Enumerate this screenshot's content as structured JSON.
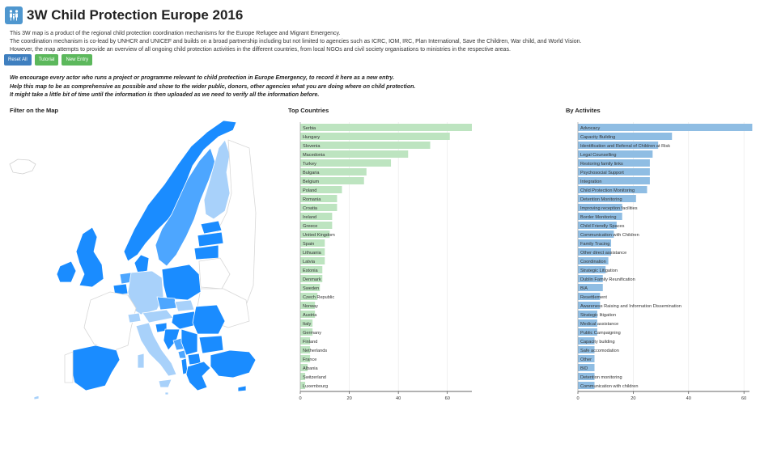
{
  "header": {
    "title": "3W Child Protection Europe 2016",
    "logo_icon": "family-icon"
  },
  "intro": {
    "line1": "This 3W map is a product of the regional child protection coordination mechanisms for the Europe Refugee and Migrant Emergency.",
    "line2": "The coordination mechanism is co-lead by UNHCR and UNICEF and builds on a broad partnership including but not limited to agencies such as ICRC, IOM, IRC, Plan International, Save the Children, War child, and World Vision.",
    "line3": "However, the map attempts to provide an overview of all ongoing child protection activities in the different countries, from local NGOs and civil society organisations to ministries in the respective areas."
  },
  "buttons": {
    "reset": "Reset All",
    "tutorial": "Tutorial",
    "new_entry": "New Entry"
  },
  "encourage": {
    "line1": "We encourage every actor who runs a project or programme relevant to child protection in Europe Emergency, to record it here as a new entry.",
    "line2": "Help this map to be as comprehensive as possible and show to the wider public, donors, other agencies what you are doing where on child protection.",
    "line3": "It might take a little bit of time until the information is then uploaded as we need to verify all the information before."
  },
  "sections": {
    "map": "Filter on the Map",
    "countries": "Top Countries",
    "activities": "By Activites"
  },
  "colors": {
    "map_dark": "#1a8cff",
    "map_mid": "#4da6ff",
    "map_light": "#a8d1fa",
    "map_empty": "#ffffff",
    "map_border": "#d8d8d8",
    "country_bar": "#bde4c0",
    "activity_bar": "#8fbde3"
  },
  "chart_data": [
    {
      "type": "bar",
      "orientation": "horizontal",
      "title": "Top Countries",
      "xlim": [
        0,
        70
      ],
      "ticks": [
        0,
        20,
        40,
        60
      ],
      "categories": [
        "Serbia",
        "Hungary",
        "Slovenia",
        "Macedonia",
        "Turkey",
        "Bulgaria",
        "Belgium",
        "Poland",
        "Romania",
        "Croatia",
        "Ireland",
        "Greece",
        "United Kingdom",
        "Spain",
        "Lithuania",
        "Latvia",
        "Estonia",
        "Denmark",
        "Sweden",
        "Czech Republic",
        "Norway",
        "Austria",
        "Italy",
        "Germany",
        "Finland",
        "Netherlands",
        "France",
        "Albania",
        "Switzerland",
        "Luxembourg"
      ],
      "values": [
        70,
        61,
        53,
        44,
        37,
        27,
        26,
        17,
        15,
        15,
        13,
        13,
        12,
        10,
        10,
        10,
        9,
        9,
        8,
        7,
        6,
        6,
        5,
        5,
        4,
        4,
        4,
        3,
        2,
        2
      ]
    },
    {
      "type": "bar",
      "orientation": "horizontal",
      "title": "By Activites",
      "xlim": [
        0,
        62
      ],
      "ticks": [
        0,
        20,
        40,
        60
      ],
      "categories": [
        "Advocacy",
        "Capacity Building",
        "Identification and Referral of Children at Risk",
        "Legal Counselling",
        "Restoring family links",
        "Psychosocial Support",
        "Integration",
        "Child Protection Monitoring",
        "Detention Monitoring",
        "Improving reception facilities",
        "Border Monitoring",
        "Child Friendly Spaces",
        "Communication with Children",
        "Family Tracing",
        "Other direct assistance",
        "Coordination",
        "Strategic Litigation",
        "Dublin Family Reunification",
        "BIA",
        "Resettlement",
        "Awareness Raising and Information Dissemination",
        "Strategic litigation",
        "Medical assistance",
        "Public Campaigning",
        "Capacity building",
        "Safe accomodation",
        "Other",
        "BID",
        "Detention monitoring",
        "Communication with children"
      ],
      "values": [
        63,
        34,
        29,
        27,
        26,
        26,
        26,
        25,
        21,
        16,
        16,
        14,
        13,
        12,
        12,
        11,
        10,
        9,
        9,
        8,
        8,
        7,
        7,
        7,
        6,
        6,
        6,
        6,
        6,
        6
      ]
    }
  ]
}
